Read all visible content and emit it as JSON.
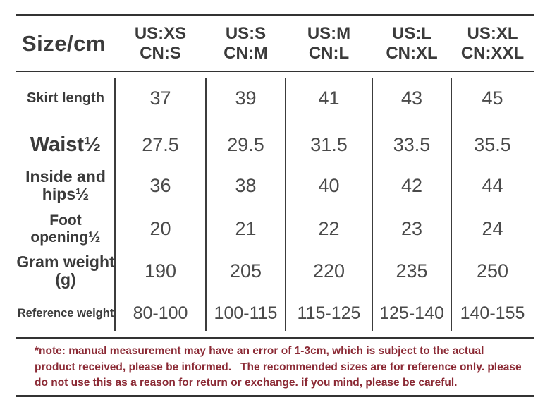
{
  "colors": {
    "text": "#3b3b3b",
    "value_text": "#4a4a4a",
    "line": "#333333",
    "note_text": "#8b2a35",
    "background": "#ffffff"
  },
  "header": {
    "corner": "Size/cm",
    "columns": [
      {
        "us": "US:XS",
        "cn": "CN:S"
      },
      {
        "us": "US:S",
        "cn": "CN:M"
      },
      {
        "us": "US:M",
        "cn": "CN:L"
      },
      {
        "us": "US:L",
        "cn": "CN:XL"
      },
      {
        "us": "US:XL",
        "cn": "CN:XXL"
      }
    ]
  },
  "note": {
    "lines": [
      "*note: manual measurement may have an error of 1-3cm, which is subject to the actual",
      "product received, please be informed.   The recommended sizes are for reference only. please",
      "do not use this as a reason for return or exchange. if you mind, please be careful."
    ]
  },
  "chart_data": {
    "type": "table",
    "title": "Size/cm",
    "columns": [
      "US:XS CN:S",
      "US:S CN:M",
      "US:M CN:L",
      "US:L CN:XL",
      "US:XL CN:XXL"
    ],
    "rows": [
      {
        "label": "Skirt length",
        "values": [
          "37",
          "39",
          "41",
          "43",
          "45"
        ]
      },
      {
        "label": "Waist½",
        "values": [
          "27.5",
          "29.5",
          "31.5",
          "33.5",
          "35.5"
        ]
      },
      {
        "label": "Inside and hips½",
        "values": [
          "36",
          "38",
          "40",
          "42",
          "44"
        ]
      },
      {
        "label": "Foot opening½",
        "values": [
          "20",
          "21",
          "22",
          "23",
          "24"
        ]
      },
      {
        "label": "Gram weight (g)",
        "values": [
          "190",
          "205",
          "220",
          "235",
          "250"
        ]
      },
      {
        "label": "Reference weight",
        "values": [
          "80-100",
          "100-115",
          "115-125",
          "125-140",
          "140-155"
        ]
      }
    ],
    "note": "*note: manual measurement may have an error of 1-3cm, which is subject to the actual product received, please be informed.   The recommended sizes are for reference only. please do not use this as a reason for return or exchange. if you mind, please be careful."
  }
}
